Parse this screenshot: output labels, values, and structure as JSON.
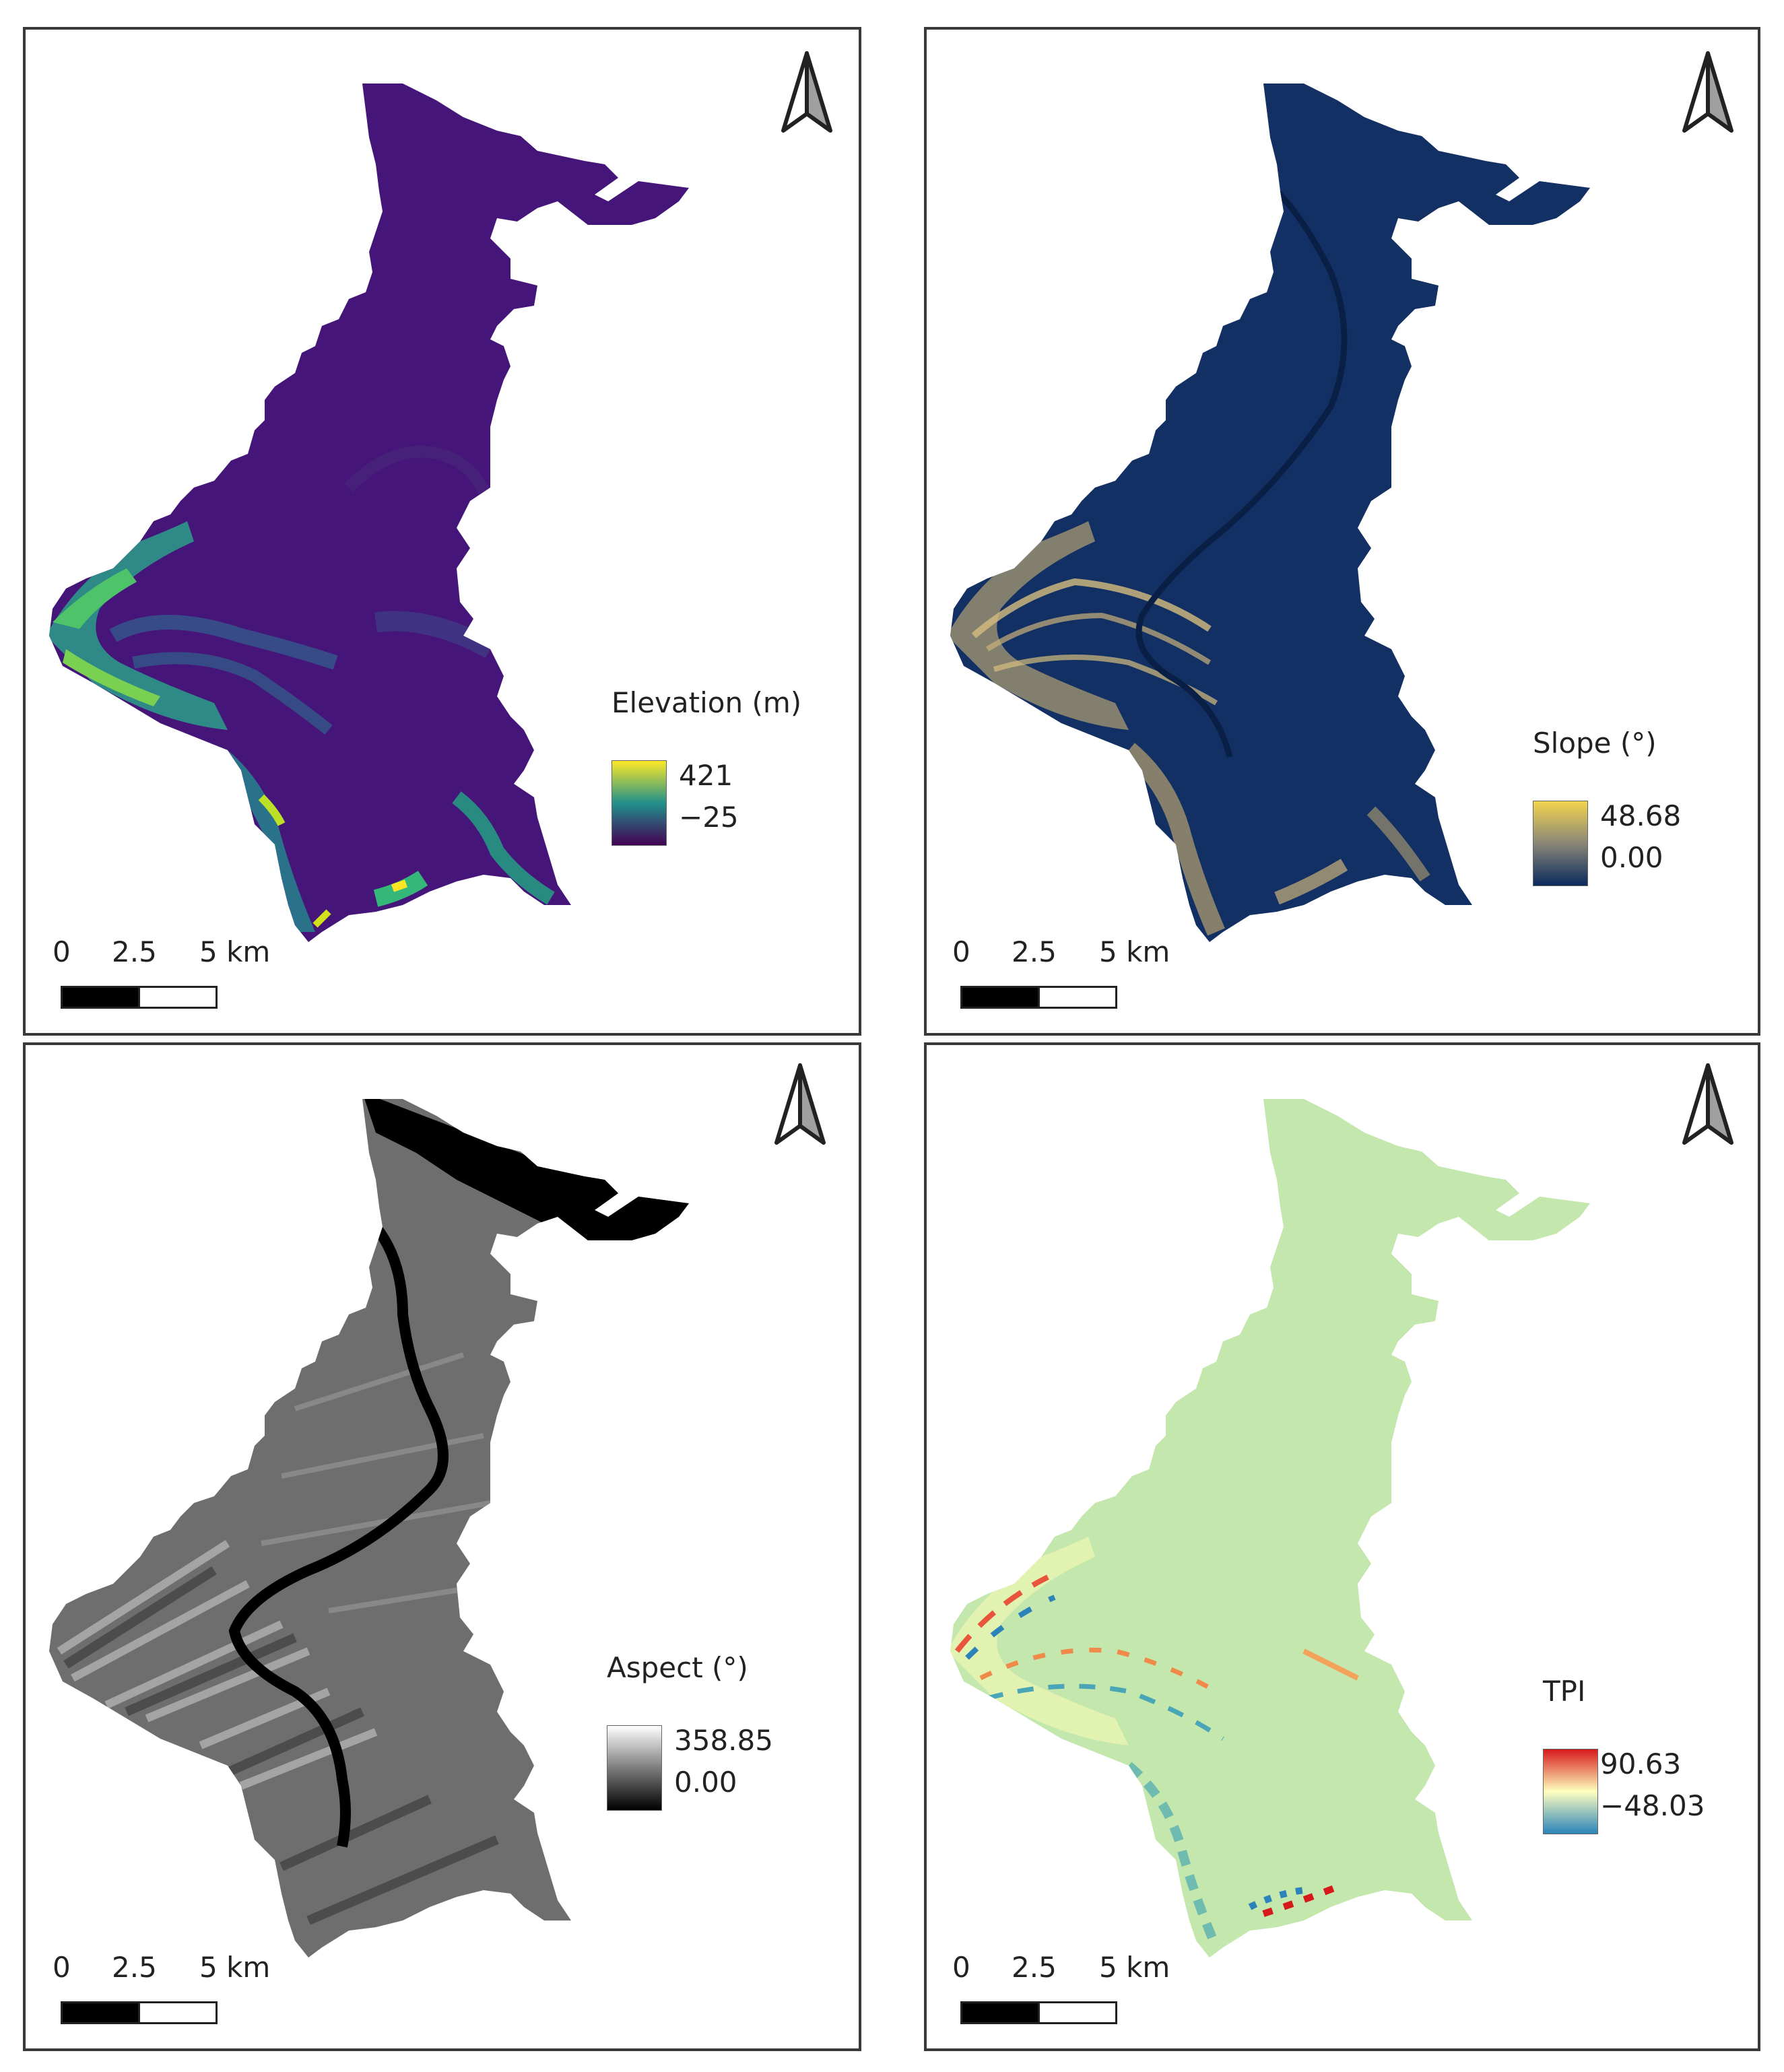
{
  "panels": [
    {
      "id": "elevation",
      "legend_title": "Elevation (m)",
      "max": "421",
      "min": "−25",
      "ramp_colors": [
        "#fde725",
        "#21918c",
        "#440154"
      ],
      "fill_color": "#46157a",
      "highlight_color": "#29a58b"
    },
    {
      "id": "slope",
      "legend_title": "Slope (°)",
      "max": "48.68",
      "min": "0.00",
      "ramp_colors": [
        "#f2d44e",
        "#8a8678",
        "#0a2a5c"
      ],
      "fill_color": "#123063",
      "highlight_color": "#c4ad72"
    },
    {
      "id": "aspect",
      "legend_title": "Aspect (°)",
      "max": "358.85",
      "min": "0.00",
      "ramp_colors": [
        "#ffffff",
        "#7d7d7d",
        "#000000"
      ],
      "fill_color": "#6e6e6e",
      "highlight_color": "#c8c8c8"
    },
    {
      "id": "tpi",
      "legend_title": "TPI",
      "max": "90.63",
      "min": "−48.03",
      "ramp_colors": [
        "#d7191c",
        "#ffffbf",
        "#2b83ba"
      ],
      "fill_color": "#c3e7ad",
      "highlight_color": "#e8f3b2"
    }
  ],
  "scale_bar": {
    "ticks": [
      "0",
      "2.5",
      "5 km"
    ]
  },
  "north_arrow": {
    "icon": "north-arrow-icon"
  }
}
